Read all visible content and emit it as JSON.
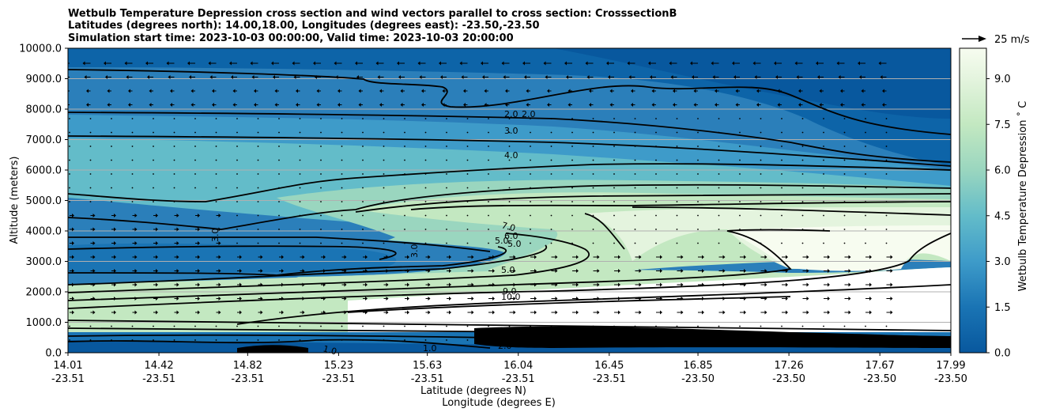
{
  "chart_data": {
    "type": "heatmap",
    "title_lines": [
      "Wetbulb Temperature Depression cross section and wind vectors parallel to cross section: CrosssectionB",
      "Latitudes (degrees north): 14.00,18.00, Longitudes (degrees east): -23.50,-23.50",
      "Simulation start time: 2023-10-03 00:00:00, Valid time: 2023-10-03 20:00:00"
    ],
    "ylabel": "Altitude (meters)",
    "xlabel_lat": "Latitude (degrees N)",
    "xlabel_lon": "Longitude (degrees E)",
    "ylim": [
      0,
      10000
    ],
    "y_ticks": [
      "0.0",
      "1000.0",
      "2000.0",
      "3000.0",
      "4000.0",
      "5000.0",
      "6000.0",
      "7000.0",
      "8000.0",
      "9000.0",
      "10000.0"
    ],
    "x_ticks": [
      {
        "lat": "14.01",
        "lon": "-23.51"
      },
      {
        "lat": "14.42",
        "lon": "-23.51"
      },
      {
        "lat": "14.82",
        "lon": "-23.51"
      },
      {
        "lat": "15.23",
        "lon": "-23.51"
      },
      {
        "lat": "15.63",
        "lon": "-23.51"
      },
      {
        "lat": "16.04",
        "lon": "-23.51"
      },
      {
        "lat": "16.45",
        "lon": "-23.51"
      },
      {
        "lat": "16.85",
        "lon": "-23.50"
      },
      {
        "lat": "17.26",
        "lon": "-23.50"
      },
      {
        "lat": "17.67",
        "lon": "-23.50"
      },
      {
        "lat": "17.99",
        "lon": "-23.50"
      }
    ],
    "grid": true,
    "colorbar": {
      "label": "Wetbulb Temperature Depression $^\\circ$C",
      "label_display": "Wetbulb Temperature Depression ˚ C",
      "ticks": [
        "0.0",
        "1.5",
        "3.0",
        "4.5",
        "6.0",
        "7.5",
        "9.0"
      ],
      "range": [
        0,
        10
      ],
      "colormap": "GnBu_r"
    },
    "quiver_key": "25 m/s",
    "contour_labels": [
      "2.0",
      "2.0",
      "3.0",
      "4.0",
      "7.0",
      "6.0",
      "5.0",
      "5.0",
      "3.0",
      "3.0",
      "5.0",
      "9.0",
      "10.0",
      "10.0",
      "2.0",
      "1.0",
      "1.0"
    ]
  }
}
